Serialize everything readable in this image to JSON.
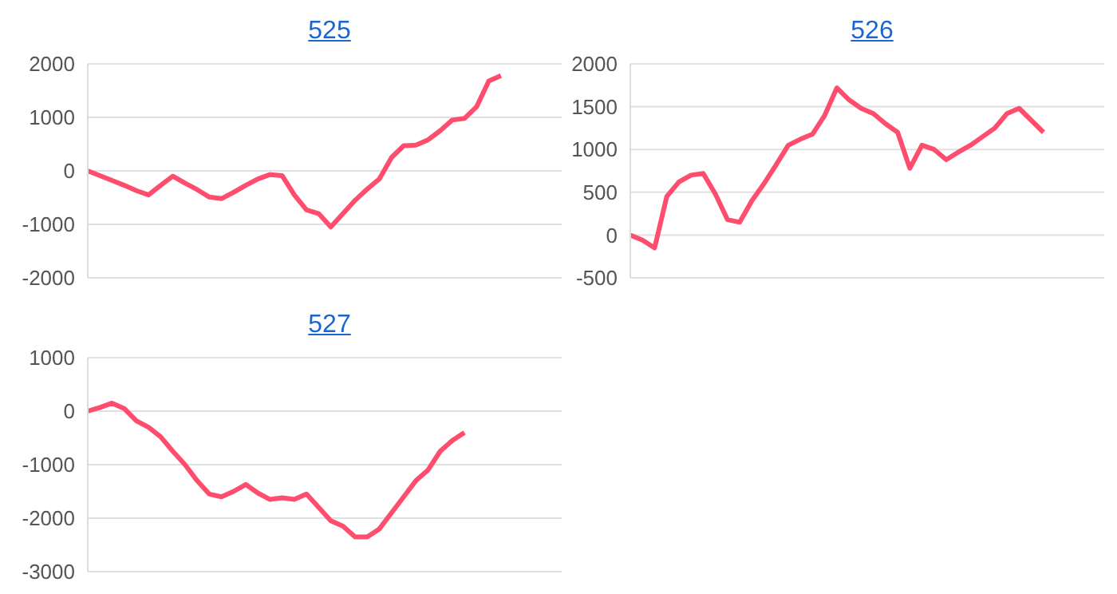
{
  "chart_data": [
    {
      "type": "line",
      "title": "525",
      "categories": [
        null,
        null,
        null,
        null,
        null,
        null,
        null,
        null,
        null,
        null,
        null,
        null,
        null,
        null,
        null,
        null,
        null,
        null,
        null,
        null,
        null,
        null,
        null,
        null,
        null,
        null,
        null,
        null,
        null,
        null,
        null,
        null,
        null,
        null,
        null,
        null,
        null,
        null,
        null,
        null
      ],
      "series": [
        {
          "color": "#ff4d6d",
          "values": [
            0,
            -90,
            -180,
            -270,
            -370,
            -450,
            -270,
            -100,
            -230,
            -350,
            -490,
            -520,
            -400,
            -270,
            -150,
            -70,
            -90,
            -450,
            -730,
            -800,
            -1050,
            -800,
            -550,
            -340,
            -150,
            250,
            470,
            480,
            580,
            750,
            950,
            980,
            1200,
            1680,
            1780,
            null,
            null,
            null,
            null,
            null
          ]
        }
      ],
      "ylim": [
        -2000,
        2000
      ],
      "yticks": [
        -2000,
        -1000,
        0,
        1000,
        2000
      ],
      "grid": "y",
      "tick_labels": "y"
    },
    {
      "type": "line",
      "title": "526",
      "categories": [
        null,
        null,
        null,
        null,
        null,
        null,
        null,
        null,
        null,
        null,
        null,
        null,
        null,
        null,
        null,
        null,
        null,
        null,
        null,
        null,
        null,
        null,
        null,
        null,
        null,
        null,
        null,
        null,
        null,
        null,
        null,
        null,
        null,
        null,
        null,
        null,
        null,
        null,
        null,
        null
      ],
      "series": [
        {
          "color": "#ff4d6d",
          "values": [
            0,
            -60,
            -150,
            450,
            620,
            700,
            720,
            480,
            180,
            150,
            400,
            600,
            820,
            1050,
            1120,
            1180,
            1400,
            1720,
            1580,
            1480,
            1420,
            1300,
            1200,
            780,
            1050,
            1000,
            880,
            970,
            1050,
            1150,
            1250,
            1420,
            1480,
            1340,
            1200,
            null,
            null,
            null,
            null,
            null
          ]
        }
      ],
      "ylim": [
        -500,
        2000
      ],
      "yticks": [
        -500,
        0,
        500,
        1000,
        1500,
        2000
      ],
      "grid": "y",
      "tick_labels": "y"
    },
    {
      "type": "line",
      "title": "527",
      "categories": [
        null,
        null,
        null,
        null,
        null,
        null,
        null,
        null,
        null,
        null,
        null,
        null,
        null,
        null,
        null,
        null,
        null,
        null,
        null,
        null,
        null,
        null,
        null,
        null,
        null,
        null,
        null,
        null,
        null,
        null,
        null,
        null,
        null,
        null,
        null,
        null,
        null,
        null,
        null,
        null
      ],
      "series": [
        {
          "color": "#ff4d6d",
          "values": [
            0,
            70,
            150,
            50,
            -180,
            -300,
            -480,
            -750,
            -1000,
            -1300,
            -1550,
            -1600,
            -1500,
            -1370,
            -1530,
            -1650,
            -1620,
            -1650,
            -1550,
            -1800,
            -2050,
            -2150,
            -2350,
            -2350,
            -2200,
            -1900,
            -1600,
            -1300,
            -1100,
            -750,
            -550,
            -400,
            null,
            null,
            null,
            null,
            null,
            null,
            null,
            null
          ]
        }
      ],
      "ylim": [
        -3000,
        1000
      ],
      "yticks": [
        -3000,
        -2000,
        -1000,
        0,
        1000
      ],
      "grid": "y",
      "tick_labels": "y"
    }
  ]
}
